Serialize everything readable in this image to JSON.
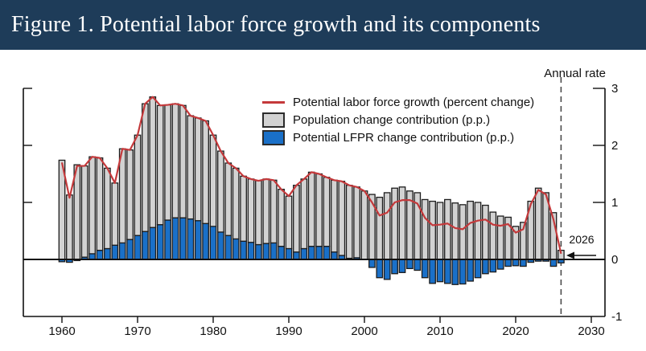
{
  "title": "Figure 1. Potential labor force growth and its components",
  "annotations": {
    "annual_rate": "Annual rate",
    "marker_year_label": "2026"
  },
  "legend": [
    {
      "type": "line",
      "color": "#c4393b",
      "label": "Potential labor force growth (percent change)"
    },
    {
      "type": "box",
      "color": "#d2d2d2",
      "label": "Population change contribution (p.p.)"
    },
    {
      "type": "box",
      "color": "#1a70c8",
      "label": "Potential LFPR change contribution (p.p.)"
    }
  ],
  "colors": {
    "title_bg": "#1e3c59",
    "title_text": "#ffffff",
    "bar_population": "#d2d2d2",
    "bar_lfpr": "#1a70c8",
    "bar_border": "#1c1c1c",
    "line_red": "#c4393b",
    "axis": "#111111",
    "dashed_marker": "#4a4a4a"
  },
  "chart_data": {
    "type": "bar",
    "subtype": "stacked-bars-with-line-overlay",
    "title": "Potential labor force growth and its components",
    "ylabel_note": "Annual rate",
    "xlim": [
      1955,
      2032
    ],
    "ylim": [
      -1,
      3
    ],
    "x_ticks": [
      1960,
      1970,
      1980,
      1990,
      2000,
      2010,
      2020,
      2030
    ],
    "y_ticks": [
      -1,
      0,
      1,
      2,
      3
    ],
    "marker_year": 2026,
    "grid": false,
    "legend_position": "upper-center-left",
    "x": [
      1960,
      1961,
      1962,
      1963,
      1964,
      1965,
      1966,
      1967,
      1968,
      1969,
      1970,
      1971,
      1972,
      1973,
      1974,
      1975,
      1976,
      1977,
      1978,
      1979,
      1980,
      1981,
      1982,
      1983,
      1984,
      1985,
      1986,
      1987,
      1988,
      1989,
      1990,
      1991,
      1992,
      1993,
      1994,
      1995,
      1996,
      1997,
      1998,
      1999,
      2000,
      2001,
      2002,
      2003,
      2004,
      2005,
      2006,
      2007,
      2008,
      2009,
      2010,
      2011,
      2012,
      2013,
      2014,
      2015,
      2016,
      2017,
      2018,
      2019,
      2020,
      2021,
      2022,
      2023,
      2024,
      2025,
      2026
    ],
    "series": [
      {
        "name": "Population change contribution (p.p.)",
        "kind": "bar",
        "color": "#d2d2d2",
        "values": [
          1.74,
          1.13,
          1.66,
          1.6,
          1.7,
          1.62,
          1.41,
          1.09,
          1.65,
          1.57,
          1.76,
          2.24,
          2.29,
          2.09,
          2.02,
          2.0,
          1.97,
          1.81,
          1.8,
          1.8,
          1.6,
          1.42,
          1.27,
          1.24,
          1.14,
          1.11,
          1.12,
          1.13,
          1.1,
          1.0,
          0.92,
          1.17,
          1.22,
          1.3,
          1.27,
          1.21,
          1.26,
          1.3,
          1.28,
          1.24,
          1.2,
          1.14,
          1.09,
          1.17,
          1.25,
          1.27,
          1.2,
          1.17,
          1.05,
          1.02,
          1.0,
          1.05,
          0.99,
          0.96,
          1.02,
          1.0,
          0.95,
          0.83,
          0.76,
          0.74,
          0.58,
          0.65,
          1.02,
          1.25,
          1.17,
          0.82,
          0.16
        ]
      },
      {
        "name": "Potential LFPR change contribution (p.p.)",
        "kind": "bar",
        "color": "#1a70c8",
        "values": [
          -0.04,
          -0.05,
          -0.02,
          0.04,
          0.1,
          0.16,
          0.19,
          0.25,
          0.29,
          0.35,
          0.42,
          0.49,
          0.56,
          0.61,
          0.69,
          0.73,
          0.73,
          0.71,
          0.68,
          0.63,
          0.58,
          0.48,
          0.42,
          0.36,
          0.32,
          0.3,
          0.26,
          0.28,
          0.29,
          0.23,
          0.19,
          0.13,
          0.19,
          0.23,
          0.23,
          0.23,
          0.13,
          0.07,
          0.02,
          0.03,
          0.0,
          -0.14,
          -0.32,
          -0.35,
          -0.25,
          -0.23,
          -0.16,
          -0.19,
          -0.32,
          -0.42,
          -0.39,
          -0.42,
          -0.44,
          -0.43,
          -0.38,
          -0.32,
          -0.25,
          -0.22,
          -0.17,
          -0.12,
          -0.11,
          -0.12,
          -0.05,
          -0.03,
          -0.03,
          -0.12,
          -0.06
        ]
      },
      {
        "name": "Potential labor force growth (percent change)",
        "kind": "line",
        "color": "#c4393b",
        "values": [
          1.7,
          1.08,
          1.64,
          1.64,
          1.8,
          1.78,
          1.6,
          1.34,
          1.94,
          1.92,
          2.18,
          2.73,
          2.85,
          2.7,
          2.71,
          2.73,
          2.7,
          2.52,
          2.48,
          2.43,
          2.18,
          1.9,
          1.69,
          1.6,
          1.46,
          1.41,
          1.38,
          1.41,
          1.39,
          1.23,
          1.11,
          1.3,
          1.41,
          1.53,
          1.5,
          1.44,
          1.39,
          1.37,
          1.3,
          1.27,
          1.2,
          1.0,
          0.77,
          0.82,
          1.0,
          1.04,
          1.04,
          0.98,
          0.73,
          0.6,
          0.61,
          0.63,
          0.55,
          0.53,
          0.64,
          0.68,
          0.7,
          0.61,
          0.59,
          0.62,
          0.47,
          0.53,
          0.97,
          1.22,
          1.14,
          0.7,
          0.1
        ]
      }
    ]
  }
}
